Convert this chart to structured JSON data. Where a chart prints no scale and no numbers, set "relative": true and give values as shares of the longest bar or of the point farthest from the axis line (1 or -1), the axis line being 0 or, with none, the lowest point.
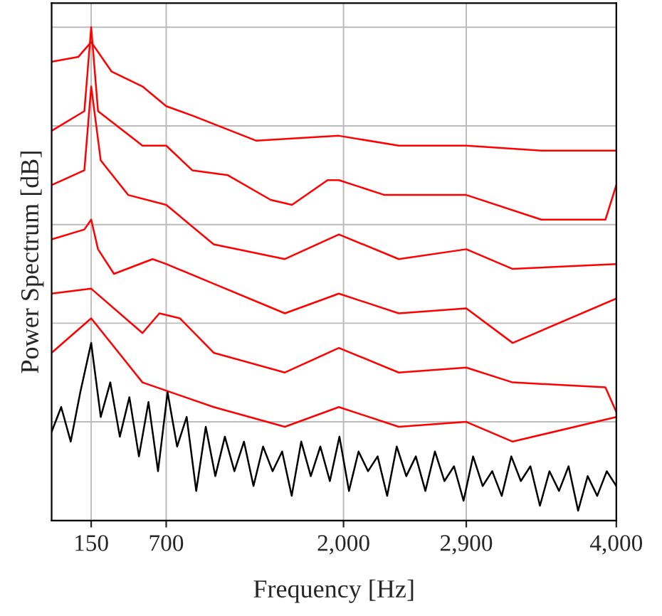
{
  "chart_data": {
    "type": "line",
    "xlabel": "Frequency [Hz]",
    "ylabel": "Power Spectrum [dB]",
    "relative": true,
    "xlim": [
      -140,
      4000
    ],
    "xticks": [
      150,
      700,
      {
        "value": 2000,
        "label": "2,000"
      },
      {
        "value": 2900,
        "label": "2,900"
      },
      {
        "value": 4000,
        "label": "4,000"
      }
    ],
    "grid": true,
    "tick_labels": "x",
    "marker": "none",
    "line_style": "solid",
    "series": [
      {
        "color": "#ff0000",
        "x": [
          -140,
          56,
          150,
          300,
          526,
          700,
          900,
          1361,
          1966,
          2405,
          2900,
          3450,
          4000
        ],
        "values": [
          0.93,
          0.94,
          0.97,
          0.91,
          0.88,
          0.84,
          0.82,
          0.77,
          0.78,
          0.76,
          0.76,
          0.75,
          0.75
        ]
      },
      {
        "color": "#ff0000",
        "x": [
          -140,
          100,
          150,
          200,
          526,
          700,
          891,
          1152,
          1466,
          1622,
          1883,
          1966,
          2300,
          2900,
          3450,
          3920,
          4000
        ],
        "values": [
          0.79,
          0.83,
          1,
          0.83,
          0.76,
          0.76,
          0.71,
          0.7,
          0.65,
          0.64,
          0.69,
          0.69,
          0.66,
          0.66,
          0.61,
          0.61,
          0.68
        ]
      },
      {
        "color": "#ff0000",
        "x": [
          -140,
          100,
          150,
          220,
          421,
          700,
          1048,
          1570,
          1966,
          2405,
          2900,
          3240,
          4000
        ],
        "values": [
          0.68,
          0.71,
          0.88,
          0.73,
          0.66,
          0.64,
          0.56,
          0.53,
          0.58,
          0.53,
          0.55,
          0.51,
          0.52
        ]
      },
      {
        "color": "#ff0000",
        "x": [
          -140,
          100,
          150,
          200,
          317,
          600,
          700,
          1048,
          1570,
          1966,
          2405,
          2900,
          3240,
          4000
        ],
        "values": [
          0.57,
          0.59,
          0.61,
          0.55,
          0.5,
          0.53,
          0.52,
          0.48,
          0.42,
          0.46,
          0.42,
          0.43,
          0.36,
          0.45
        ]
      },
      {
        "color": "#ff0000",
        "x": [
          -140,
          150,
          526,
          650,
          800,
          1048,
          1570,
          1966,
          2405,
          2900,
          3240,
          3920,
          4000
        ],
        "values": [
          0.46,
          0.47,
          0.38,
          0.42,
          0.41,
          0.34,
          0.3,
          0.35,
          0.3,
          0.31,
          0.28,
          0.27,
          0.22
        ]
      },
      {
        "color": "#ff0000",
        "x": [
          -140,
          150,
          526,
          1048,
          1570,
          1966,
          2405,
          2900,
          3240,
          4000
        ],
        "values": [
          0.34,
          0.41,
          0.28,
          0.23,
          0.19,
          0.23,
          0.19,
          0.2,
          0.16,
          0.21
        ]
      },
      {
        "color": "#000000",
        "x": [
          -140,
          -70,
          0,
          70,
          150,
          220,
          290,
          360,
          430,
          500,
          570,
          640,
          710,
          780,
          850,
          920,
          990,
          1060,
          1130,
          1200,
          1270,
          1340,
          1410,
          1480,
          1550,
          1620,
          1690,
          1760,
          1830,
          1900,
          1970,
          2040,
          2110,
          2180,
          2250,
          2320,
          2390,
          2460,
          2530,
          2600,
          2670,
          2740,
          2810,
          2880,
          2950,
          3020,
          3090,
          3160,
          3230,
          3300,
          3370,
          3440,
          3510,
          3580,
          3650,
          3720,
          3790,
          3860,
          3930,
          4000
        ],
        "values": [
          0.18,
          0.23,
          0.16,
          0.26,
          0.36,
          0.21,
          0.28,
          0.17,
          0.25,
          0.13,
          0.24,
          0.1,
          0.26,
          0.15,
          0.21,
          0.06,
          0.19,
          0.09,
          0.17,
          0.1,
          0.16,
          0.07,
          0.15,
          0.1,
          0.14,
          0.05,
          0.16,
          0.09,
          0.15,
          0.08,
          0.17,
          0.06,
          0.14,
          0.1,
          0.13,
          0.05,
          0.15,
          0.09,
          0.13,
          0.06,
          0.14,
          0.08,
          0.11,
          0.04,
          0.13,
          0.07,
          0.1,
          0.05,
          0.13,
          0.08,
          0.11,
          0.03,
          0.1,
          0.06,
          0.11,
          0.02,
          0.09,
          0.05,
          0.1,
          0.07
        ]
      }
    ]
  }
}
